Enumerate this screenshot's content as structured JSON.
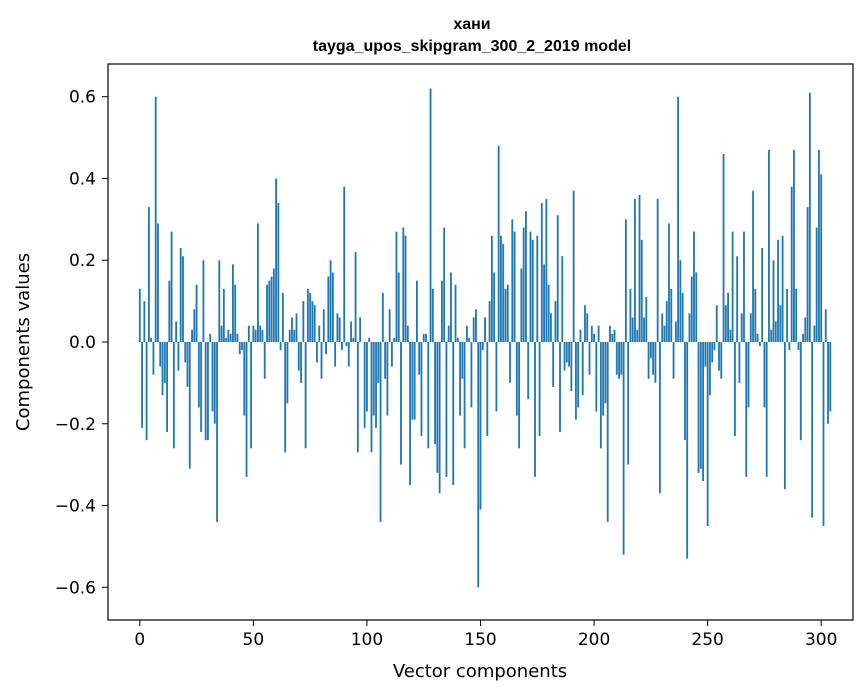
{
  "chart_data": {
    "type": "bar",
    "title": "хани",
    "subtitle": "tayga_upos_skipgram_300_2_2019 model",
    "xlabel": "Vector components",
    "ylabel": "Components values",
    "xlim": [
      -14,
      314
    ],
    "ylim": [
      -0.68,
      0.68
    ],
    "xticks": [
      0,
      50,
      100,
      150,
      200,
      250,
      300
    ],
    "xtick_labels": [
      "0",
      "50",
      "100",
      "150",
      "200",
      "250",
      "300"
    ],
    "yticks": [
      -0.6,
      -0.4,
      -0.2,
      0.0,
      0.2,
      0.4,
      0.6
    ],
    "ytick_labels": [
      "−0.6",
      "−0.4",
      "−0.2",
      "0.0",
      "0.2",
      "0.4",
      "0.6"
    ],
    "color": "#1f77b4",
    "values": [
      0.13,
      -0.21,
      0.1,
      -0.24,
      0.33,
      0.01,
      -0.08,
      0.6,
      0.29,
      -0.06,
      -0.13,
      -0.1,
      -0.22,
      0.15,
      0.27,
      -0.26,
      0.05,
      -0.07,
      0.23,
      0.21,
      -0.05,
      -0.11,
      -0.31,
      0.03,
      0.08,
      0.14,
      -0.16,
      -0.22,
      0.2,
      -0.24,
      -0.24,
      0.02,
      -0.17,
      -0.2,
      -0.44,
      0.2,
      0.04,
      0.13,
      0.01,
      0.03,
      0.02,
      0.19,
      0.14,
      0.02,
      -0.03,
      -0.02,
      -0.18,
      -0.33,
      0.04,
      -0.26,
      0.04,
      0.03,
      0.29,
      0.04,
      0.03,
      -0.09,
      0.14,
      0.15,
      0.16,
      0.18,
      0.4,
      0.34,
      -0.02,
      0.12,
      -0.27,
      -0.15,
      0.03,
      0.06,
      0.03,
      0.07,
      -0.07,
      -0.1,
      0.1,
      -0.26,
      0.13,
      0.12,
      0.1,
      0.09,
      -0.05,
      0.04,
      -0.09,
      0.08,
      -0.03,
      0.16,
      0.2,
      0.17,
      -0.06,
      0.07,
      0.06,
      -0.02,
      0.38,
      -0.01,
      -0.06,
      0.05,
      0.01,
      0.22,
      -0.27,
      0.06,
      0.0,
      -0.21,
      -0.17,
      0.01,
      -0.27,
      -0.18,
      -0.21,
      -0.1,
      -0.44,
      0.12,
      -0.09,
      -0.18,
      0.08,
      -0.06,
      0.01,
      0.27,
      0.17,
      -0.3,
      0.28,
      0.26,
      0.04,
      -0.35,
      -0.19,
      -0.19,
      0.15,
      -0.08,
      -0.23,
      0.02,
      0.02,
      -0.26,
      0.62,
      0.13,
      -0.25,
      -0.32,
      -0.37,
      0.15,
      0.28,
      -0.33,
      0.04,
      0.17,
      -0.35,
      0.14,
      0.01,
      -0.18,
      -0.09,
      -0.26,
      0.04,
      0.01,
      -0.16,
      0.06,
      0.08,
      -0.6,
      -0.41,
      -0.02,
      0.06,
      -0.23,
      0.1,
      0.26,
      0.17,
      -0.17,
      0.48,
      0.26,
      0.24,
      0.13,
      0.14,
      -0.1,
      0.3,
      0.27,
      -0.18,
      -0.26,
      0.18,
      0.28,
      0.32,
      -0.14,
      0.27,
      0.25,
      -0.33,
      0.26,
      -0.23,
      0.34,
      0.19,
      0.35,
      0.14,
      0.07,
      -0.11,
      0.1,
      0.31,
      -0.22,
      0.21,
      -0.07,
      -0.05,
      -0.06,
      -0.12,
      0.37,
      -0.19,
      -0.16,
      0.03,
      -0.13,
      0.09,
      0.07,
      -0.08,
      0.04,
      0.02,
      -0.17,
      0.04,
      -0.26,
      -0.18,
      -0.15,
      -0.44,
      0.04,
      0.02,
      0.03,
      -0.08,
      -0.09,
      -0.08,
      -0.52,
      0.3,
      -0.3,
      0.13,
      0.06,
      0.35,
      0.03,
      0.36,
      0.25,
      0.06,
      0.11,
      -0.09,
      -0.04,
      -0.08,
      -0.1,
      0.35,
      -0.37,
      0.07,
      0.04,
      0.1,
      0.29,
      0.13,
      -0.09,
      0.05,
      0.6,
      0.2,
      0.12,
      -0.24,
      -0.53,
      0.07,
      0.16,
      0.27,
      0.17,
      -0.32,
      -0.31,
      -0.34,
      -0.06,
      -0.45,
      -0.13,
      -0.05,
      -0.02,
      0.09,
      -0.07,
      -0.09,
      0.46,
      0.09,
      0.12,
      0.03,
      0.27,
      -0.23,
      0.21,
      -0.1,
      0.07,
      0.27,
      -0.33,
      -0.16,
      0.07,
      0.37,
      0.13,
      0.02,
      -0.01,
      0.23,
      -0.16,
      -0.33,
      0.47,
      0.03,
      0.2,
      0.05,
      0.25,
      0.09,
      0.26,
      -0.36,
      0.13,
      -0.02,
      0.38,
      0.47,
      0.13,
      -0.02,
      -0.24,
      0.02,
      0.06,
      0.33,
      0.61,
      -0.43,
      0.04,
      0.28,
      0.47,
      0.41,
      -0.45,
      0.08,
      -0.2,
      -0.17
    ]
  }
}
